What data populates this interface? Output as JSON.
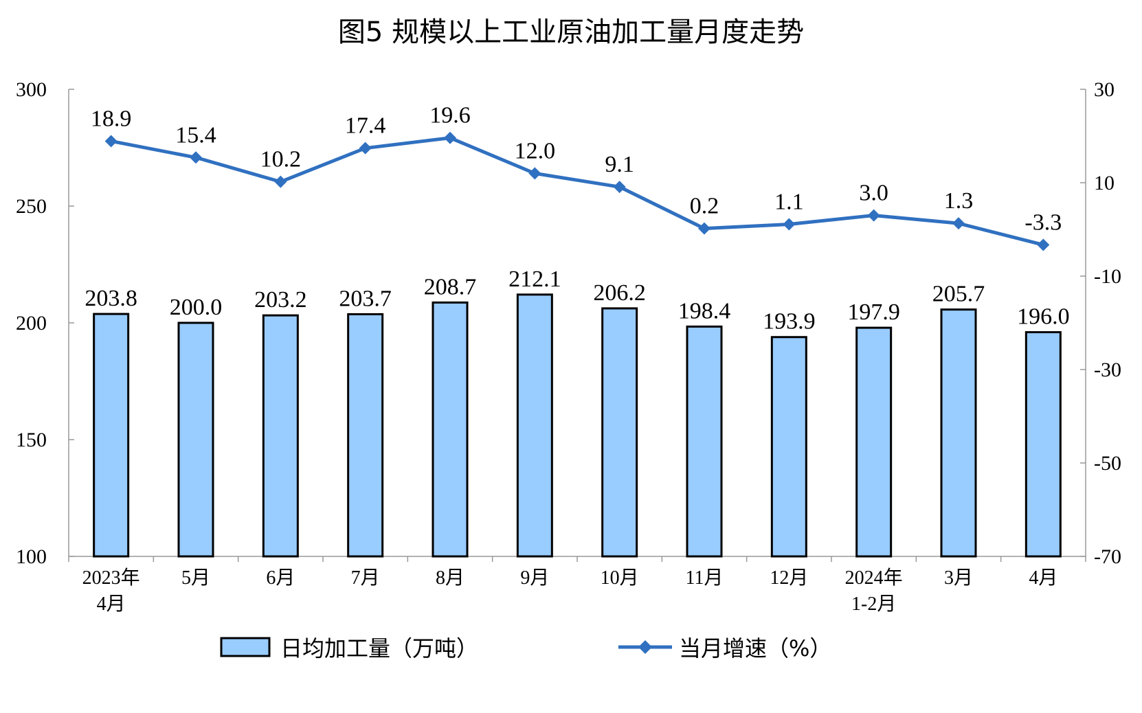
{
  "chart_data": {
    "type": "bar",
    "title": "图5 规模以上工业原油加工量月度走势",
    "categories": [
      "2023年\n4月",
      "5月",
      "6月",
      "7月",
      "8月",
      "9月",
      "10月",
      "11月",
      "12月",
      "2024年\n1-2月",
      "3月",
      "4月"
    ],
    "series": [
      {
        "name": "日均加工量（万吨）",
        "type": "bar",
        "axis": "left",
        "values": [
          203.8,
          200.0,
          203.2,
          203.7,
          208.7,
          212.1,
          206.2,
          198.4,
          193.9,
          197.9,
          205.7,
          196.0
        ],
        "labels": [
          "203.8",
          "200.0",
          "203.2",
          "203.7",
          "208.7",
          "212.1",
          "206.2",
          "198.4",
          "193.9",
          "197.9",
          "205.7",
          "196.0"
        ]
      },
      {
        "name": "当月增速（%）",
        "type": "line",
        "axis": "right",
        "values": [
          18.9,
          15.4,
          10.2,
          17.4,
          19.6,
          12.0,
          9.1,
          0.2,
          1.1,
          3.0,
          1.3,
          -3.3
        ],
        "labels": [
          "18.9",
          "15.4",
          "10.2",
          "17.4",
          "19.6",
          "12.0",
          "9.1",
          "0.2",
          "1.1",
          "3.0",
          "1.3",
          "-3.3"
        ]
      }
    ],
    "y_left": {
      "range": [
        100,
        300
      ],
      "ticks": [
        100,
        150,
        200,
        250,
        300
      ]
    },
    "y_right": {
      "range": [
        -70,
        30
      ],
      "ticks": [
        -70,
        -50,
        -30,
        -10,
        10,
        30
      ]
    },
    "grid": false,
    "legend_position": "bottom",
    "colors": {
      "bar_fill": "#99CCFF",
      "bar_stroke": "#000000",
      "line": "#3070C0"
    }
  }
}
